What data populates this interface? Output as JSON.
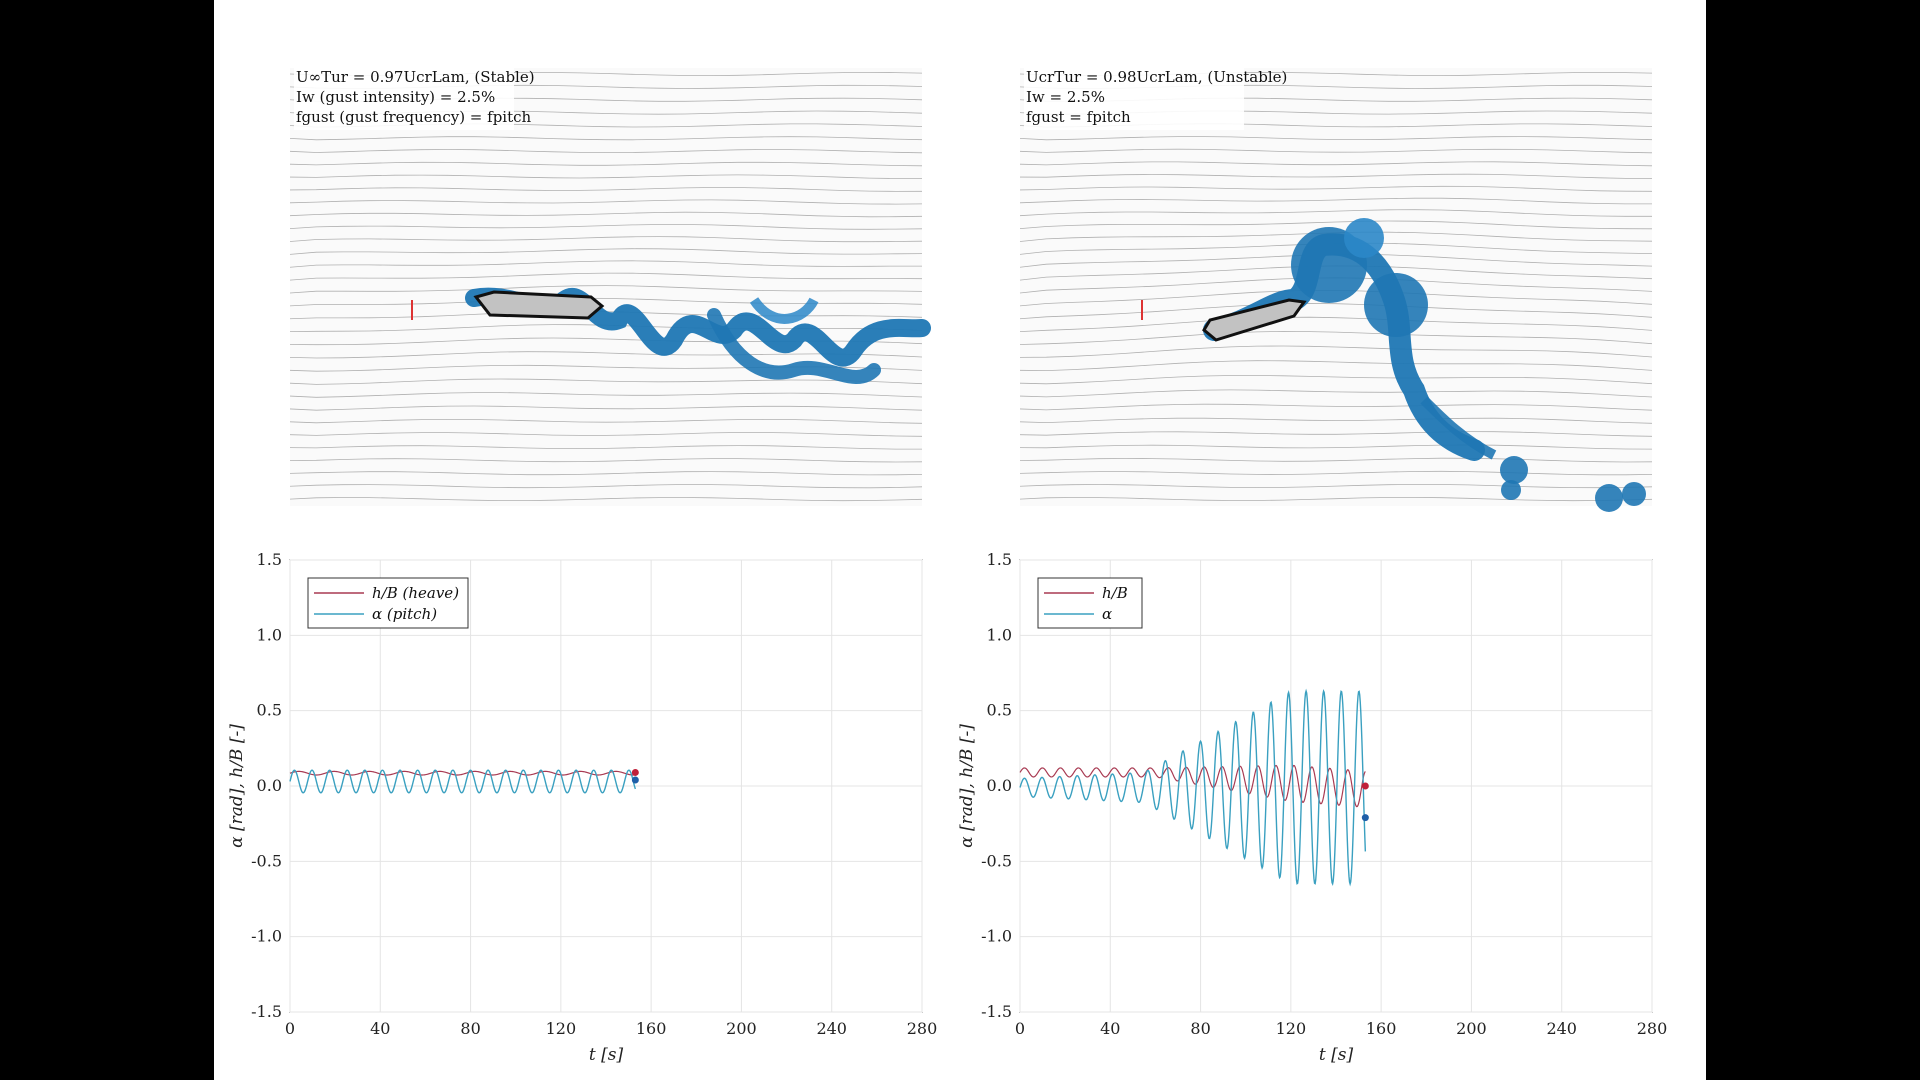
{
  "panels": {
    "left": {
      "annotation": {
        "line1": "U∞Tur = 0.97UcrLam, (Stable)",
        "line2": "Iw (gust intensity) = 2.5%",
        "line3": "fgust (gust frequency) = fpitch"
      }
    },
    "right": {
      "annotation": {
        "line1": "UcrTur = 0.98UcrLam, (Unstable)",
        "line2": "Iw = 2.5%",
        "line3": "fgust = fpitch"
      }
    }
  },
  "colors": {
    "heave": "#a83a52",
    "pitch": "#3aa0c0",
    "vortex": "#1f77b4",
    "streamline": "#b0b0b0",
    "deck": "#c0c0c0",
    "grid": "#e4e4e4"
  },
  "chart_data": [
    {
      "type": "line",
      "xlabel": "t [s]",
      "ylabel": "α [rad], h/B [-]",
      "xlim": [
        0,
        280
      ],
      "ylim": [
        -1.5,
        1.5
      ],
      "xticks": [
        0,
        40,
        80,
        120,
        160,
        200,
        240,
        280
      ],
      "yticks": [
        1.5,
        1.0,
        0.5,
        0.0,
        -0.5,
        -1.0,
        -1.5
      ],
      "ytick_labels": [
        "1.5",
        "1.0",
        "0.5",
        "0.0",
        "-0.5",
        "-1.0",
        "-1.5"
      ],
      "grid": true,
      "legend_position": "top-left",
      "series": [
        {
          "name": "h/B (heave)",
          "color": "#a83a52",
          "t_end": 153,
          "amplitude": 0.015,
          "offset": 0.085,
          "end_value": 0.09
        },
        {
          "name": "α (pitch)",
          "color": "#3aa0c0",
          "t_end": 153,
          "amplitude": 0.08,
          "offset": 0.03,
          "end_value": 0.04
        }
      ]
    },
    {
      "type": "line",
      "xlabel": "t [s]",
      "ylabel": "α [rad], h/B [-]",
      "xlim": [
        0,
        280
      ],
      "ylim": [
        -1.5,
        1.5
      ],
      "xticks": [
        0,
        40,
        80,
        120,
        160,
        200,
        240,
        280
      ],
      "yticks": [
        1.5,
        1.0,
        0.5,
        0.0,
        -0.5,
        -1.0,
        -1.5
      ],
      "ytick_labels": [
        "1.5",
        "1.0",
        "0.5",
        "0.0",
        "-0.5",
        "-1.0",
        "-1.5"
      ],
      "grid": true,
      "legend_position": "top-left",
      "series": [
        {
          "name": "h/B",
          "color": "#a83a52",
          "t_end": 153,
          "end_value": 0.0
        },
        {
          "name": "α",
          "color": "#3aa0c0",
          "t_end": 153,
          "peak_amplitude": 0.64,
          "end_value": -0.21
        }
      ]
    }
  ]
}
